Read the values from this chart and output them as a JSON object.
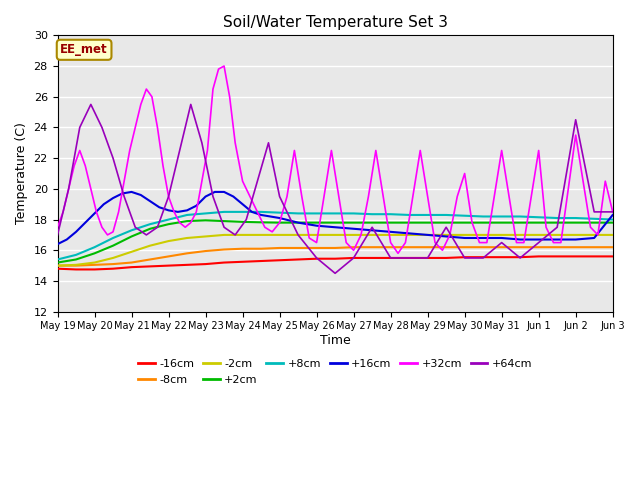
{
  "title": "Soil/Water Temperature Set 3",
  "xlabel": "Time",
  "ylabel": "Temperature (C)",
  "ylim": [
    12,
    30
  ],
  "xlim": [
    0,
    15
  ],
  "annotation_text": "EE_met",
  "annotation_bg": "#ffffcc",
  "annotation_border": "#aa8800",
  "annotation_text_color": "#990000",
  "x_tick_labels": [
    "May 19",
    "May 20",
    "May 21",
    "May 22",
    "May 23",
    "May 24",
    "May 25",
    "May 26",
    "May 27",
    "May 28",
    "May 29",
    "May 30",
    "May 31",
    "Jun 1",
    "Jun 2",
    "Jun 3"
  ],
  "series_labels": [
    "-16cm",
    "-8cm",
    "-2cm",
    "+2cm",
    "+8cm",
    "+16cm",
    "+32cm",
    "+64cm"
  ],
  "series_colors": [
    "#ff0000",
    "#ff8800",
    "#cccc00",
    "#00bb00",
    "#00bbbb",
    "#0000dd",
    "#ff00ff",
    "#9900bb"
  ],
  "neg16_x": [
    0.0,
    0.5,
    1.0,
    1.5,
    2.0,
    2.5,
    3.0,
    3.5,
    4.0,
    4.5,
    5.0,
    5.5,
    6.0,
    6.5,
    7.0,
    7.5,
    8.0,
    8.5,
    9.0,
    9.5,
    10.0,
    10.5,
    11.0,
    11.5,
    12.0,
    12.5,
    13.0,
    13.5,
    14.0,
    14.5,
    15.0
  ],
  "neg16_y": [
    14.8,
    14.75,
    14.75,
    14.8,
    14.9,
    14.95,
    15.0,
    15.05,
    15.1,
    15.2,
    15.25,
    15.3,
    15.35,
    15.4,
    15.45,
    15.45,
    15.5,
    15.5,
    15.5,
    15.5,
    15.5,
    15.5,
    15.55,
    15.55,
    15.55,
    15.55,
    15.6,
    15.6,
    15.6,
    15.6,
    15.6
  ],
  "neg8_x": [
    0.0,
    0.5,
    1.0,
    1.5,
    2.0,
    2.5,
    3.0,
    3.5,
    4.0,
    4.5,
    5.0,
    5.5,
    6.0,
    6.5,
    7.0,
    7.5,
    8.0,
    8.5,
    9.0,
    9.5,
    10.0,
    10.5,
    11.0,
    11.5,
    12.0,
    12.5,
    13.0,
    13.5,
    14.0,
    14.5,
    15.0
  ],
  "neg8_y": [
    15.0,
    15.0,
    15.05,
    15.1,
    15.2,
    15.4,
    15.6,
    15.8,
    15.95,
    16.05,
    16.1,
    16.1,
    16.15,
    16.15,
    16.15,
    16.15,
    16.2,
    16.2,
    16.2,
    16.2,
    16.2,
    16.2,
    16.2,
    16.2,
    16.2,
    16.2,
    16.2,
    16.2,
    16.2,
    16.2,
    16.2
  ],
  "neg2_x": [
    0.0,
    0.5,
    1.0,
    1.5,
    2.0,
    2.5,
    3.0,
    3.5,
    4.0,
    4.5,
    5.0,
    5.5,
    6.0,
    6.5,
    7.0,
    7.5,
    8.0,
    8.5,
    9.0,
    9.5,
    10.0,
    10.5,
    11.0,
    11.5,
    12.0,
    12.5,
    13.0,
    13.5,
    14.0,
    14.5,
    15.0
  ],
  "neg2_y": [
    15.0,
    15.05,
    15.2,
    15.5,
    15.9,
    16.3,
    16.6,
    16.8,
    16.9,
    17.0,
    17.0,
    17.0,
    17.0,
    17.0,
    17.0,
    17.0,
    17.0,
    17.0,
    17.0,
    17.0,
    17.0,
    17.0,
    17.0,
    17.0,
    17.0,
    17.0,
    17.0,
    17.0,
    17.0,
    17.0,
    17.0
  ],
  "plus2_x": [
    0.0,
    0.5,
    1.0,
    1.5,
    2.0,
    2.5,
    3.0,
    3.5,
    4.0,
    4.5,
    5.0,
    5.5,
    6.0,
    6.5,
    7.0,
    7.5,
    8.0,
    8.5,
    9.0,
    9.5,
    10.0,
    10.5,
    11.0,
    11.5,
    12.0,
    12.5,
    13.0,
    13.5,
    14.0,
    14.5,
    15.0
  ],
  "plus2_y": [
    15.2,
    15.4,
    15.8,
    16.3,
    16.9,
    17.4,
    17.7,
    17.9,
    17.95,
    17.9,
    17.85,
    17.82,
    17.8,
    17.8,
    17.8,
    17.8,
    17.8,
    17.8,
    17.8,
    17.8,
    17.8,
    17.8,
    17.8,
    17.8,
    17.8,
    17.8,
    17.8,
    17.8,
    17.8,
    17.8,
    17.8
  ],
  "plus8_x": [
    0.0,
    0.5,
    1.0,
    1.5,
    2.0,
    2.5,
    3.0,
    3.5,
    4.0,
    4.5,
    5.0,
    5.5,
    6.0,
    6.5,
    7.0,
    7.5,
    8.0,
    8.5,
    9.0,
    9.5,
    10.0,
    10.5,
    11.0,
    11.5,
    12.0,
    12.5,
    13.0,
    13.5,
    14.0,
    14.5,
    15.0
  ],
  "plus8_y": [
    15.4,
    15.7,
    16.2,
    16.8,
    17.3,
    17.7,
    18.0,
    18.3,
    18.4,
    18.5,
    18.5,
    18.5,
    18.45,
    18.4,
    18.4,
    18.4,
    18.4,
    18.35,
    18.35,
    18.3,
    18.3,
    18.3,
    18.25,
    18.2,
    18.2,
    18.2,
    18.15,
    18.1,
    18.1,
    18.05,
    18.0
  ],
  "plus16_x": [
    0.0,
    0.25,
    0.5,
    0.75,
    1.0,
    1.25,
    1.5,
    1.75,
    2.0,
    2.25,
    2.5,
    2.75,
    3.0,
    3.25,
    3.5,
    3.75,
    4.0,
    4.25,
    4.5,
    4.75,
    5.0,
    5.25,
    5.5,
    5.75,
    6.0,
    6.5,
    7.0,
    7.5,
    8.0,
    8.5,
    9.0,
    9.5,
    10.0,
    10.5,
    11.0,
    11.5,
    12.0,
    12.5,
    13.0,
    13.5,
    14.0,
    14.5,
    15.0
  ],
  "plus16_y": [
    16.4,
    16.7,
    17.2,
    17.8,
    18.4,
    19.0,
    19.4,
    19.7,
    19.8,
    19.6,
    19.2,
    18.8,
    18.6,
    18.5,
    18.6,
    18.9,
    19.5,
    19.8,
    19.8,
    19.5,
    19.0,
    18.5,
    18.3,
    18.2,
    18.1,
    17.8,
    17.6,
    17.5,
    17.4,
    17.3,
    17.2,
    17.1,
    17.0,
    16.9,
    16.8,
    16.8,
    16.8,
    16.7,
    16.7,
    16.7,
    16.7,
    16.8,
    18.3
  ],
  "plus32cm_x": [
    0.0,
    0.15,
    0.3,
    0.45,
    0.6,
    0.75,
    0.9,
    1.05,
    1.2,
    1.35,
    1.5,
    1.65,
    1.8,
    1.95,
    2.1,
    2.25,
    2.4,
    2.55,
    2.7,
    2.85,
    3.0,
    3.15,
    3.3,
    3.45,
    3.6,
    3.75,
    3.9,
    4.05,
    4.2,
    4.35,
    4.5,
    4.65,
    4.8,
    5.0,
    5.2,
    5.4,
    5.6,
    5.8,
    6.0,
    6.2,
    6.4,
    6.6,
    6.8,
    7.0,
    7.2,
    7.4,
    7.6,
    7.8,
    8.0,
    8.2,
    8.4,
    8.6,
    8.8,
    9.0,
    9.2,
    9.4,
    9.6,
    9.8,
    10.0,
    10.2,
    10.4,
    10.6,
    10.8,
    11.0,
    11.2,
    11.4,
    11.6,
    11.8,
    12.0,
    12.2,
    12.4,
    12.6,
    12.8,
    13.0,
    13.2,
    13.4,
    13.6,
    13.8,
    14.0,
    14.2,
    14.4,
    14.6,
    14.8,
    15.0
  ],
  "plus32cm_y": [
    17.5,
    18.5,
    20.0,
    21.5,
    22.5,
    21.5,
    20.0,
    18.5,
    17.5,
    17.0,
    17.2,
    18.5,
    20.5,
    22.5,
    24.0,
    25.5,
    26.5,
    26.0,
    24.0,
    21.5,
    19.5,
    18.5,
    17.8,
    17.5,
    17.8,
    18.5,
    20.5,
    22.5,
    26.5,
    27.8,
    28.0,
    26.0,
    23.0,
    20.5,
    19.5,
    18.5,
    17.5,
    17.2,
    17.8,
    19.5,
    22.5,
    19.5,
    16.8,
    16.5,
    19.5,
    22.5,
    19.5,
    16.5,
    16.0,
    17.0,
    19.5,
    22.5,
    19.5,
    16.5,
    15.8,
    16.5,
    19.5,
    22.5,
    19.5,
    16.5,
    16.0,
    17.0,
    19.5,
    21.0,
    17.8,
    16.5,
    16.5,
    19.5,
    22.5,
    19.5,
    16.5,
    16.5,
    19.5,
    22.5,
    17.5,
    16.5,
    16.5,
    20.0,
    23.5,
    20.5,
    17.5,
    17.0,
    20.5,
    18.5
  ],
  "plus64cm_x": [
    0.0,
    0.3,
    0.6,
    0.9,
    1.2,
    1.5,
    1.8,
    2.1,
    2.4,
    2.7,
    3.0,
    3.3,
    3.6,
    3.9,
    4.2,
    4.5,
    4.8,
    5.1,
    5.4,
    5.7,
    6.0,
    6.5,
    7.0,
    7.5,
    8.0,
    8.5,
    9.0,
    9.5,
    10.0,
    10.5,
    11.0,
    11.5,
    12.0,
    12.5,
    13.0,
    13.5,
    14.0,
    14.5,
    15.0
  ],
  "plus64cm_y": [
    17.0,
    20.0,
    24.0,
    25.5,
    24.0,
    22.0,
    19.5,
    17.5,
    17.0,
    17.5,
    19.5,
    22.5,
    25.5,
    23.0,
    19.5,
    17.5,
    17.0,
    18.0,
    20.5,
    23.0,
    19.5,
    17.0,
    15.5,
    14.5,
    15.5,
    17.5,
    15.5,
    15.5,
    15.5,
    17.5,
    15.5,
    15.5,
    16.5,
    15.5,
    16.5,
    17.5,
    24.5,
    18.5,
    18.5
  ]
}
